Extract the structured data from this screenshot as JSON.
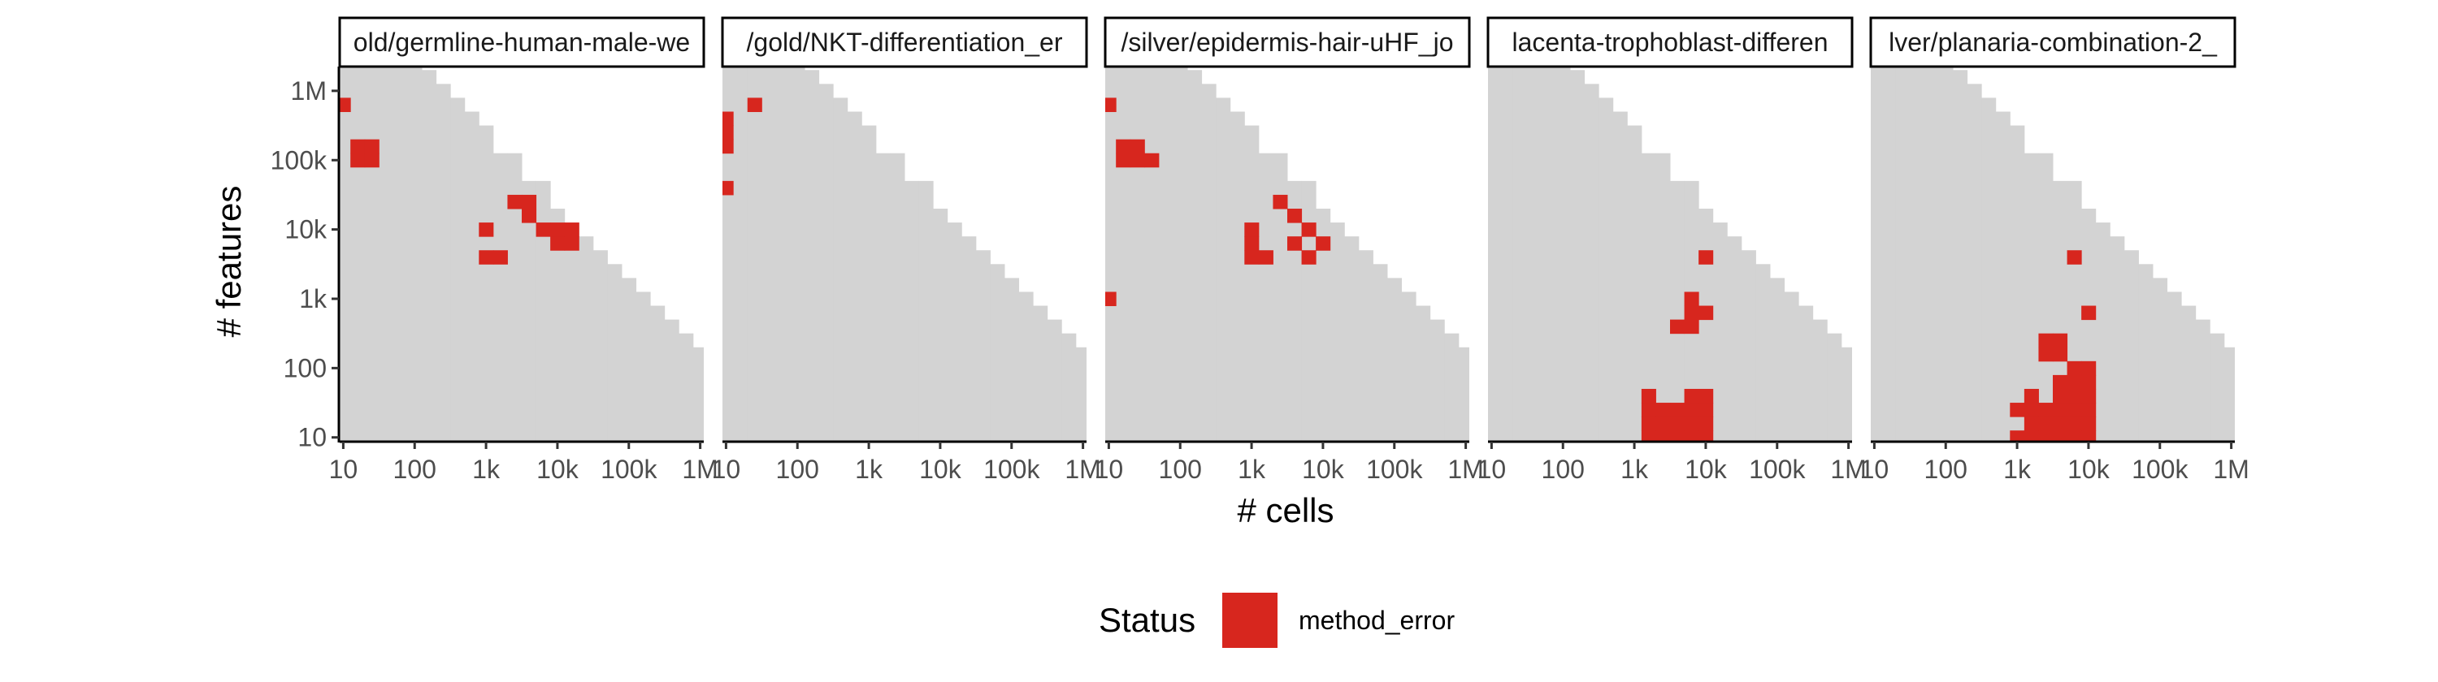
{
  "chart_data": {
    "type": "heatmap",
    "xlabel": "# cells",
    "ylabel": "# features",
    "x_scale": "log10",
    "y_scale": "log10",
    "x_ticks": [
      {
        "value": 10,
        "label": "10"
      },
      {
        "value": 100,
        "label": "100"
      },
      {
        "value": 1000,
        "label": "1k"
      },
      {
        "value": 10000,
        "label": "10k"
      },
      {
        "value": 100000,
        "label": "100k"
      },
      {
        "value": 1000000,
        "label": "1M"
      }
    ],
    "y_ticks": [
      {
        "value": 10,
        "label": "10"
      },
      {
        "value": 100,
        "label": "100"
      },
      {
        "value": 1000,
        "label": "1k"
      },
      {
        "value": 10000,
        "label": "10k"
      },
      {
        "value": 100000,
        "label": "100k"
      },
      {
        "value": 1000000,
        "label": "1M"
      }
    ],
    "xlim_log10": [
      0.95,
      6.05
    ],
    "ylim_log10": [
      0.95,
      6.35
    ],
    "cells_per_decade": 5,
    "feasible_region": "n_features * n_cells <= 2e8 (approx.)",
    "background_color": "#d3d3d3",
    "legend": {
      "title": "Status",
      "position": "bottom",
      "entries": [
        {
          "label": "method_error",
          "color": "#d7261e"
        }
      ]
    },
    "panels": [
      {
        "strip_label": "old/germline-human-male-we",
        "method_error_cells_log10": [
          [
            1.0,
            5.8
          ],
          [
            1.2,
            5.0
          ],
          [
            1.2,
            5.2
          ],
          [
            1.4,
            5.0
          ],
          [
            1.4,
            5.2
          ],
          [
            3.0,
            3.6
          ],
          [
            3.0,
            4.0
          ],
          [
            3.2,
            3.6
          ],
          [
            3.4,
            4.4
          ],
          [
            3.6,
            4.2
          ],
          [
            3.6,
            4.4
          ],
          [
            3.8,
            4.0
          ],
          [
            4.0,
            3.8
          ],
          [
            4.0,
            4.0
          ],
          [
            4.2,
            4.0
          ],
          [
            4.2,
            3.8
          ]
        ]
      },
      {
        "strip_label": "/gold/NKT-differentiation_er",
        "method_error_cells_log10": [
          [
            1.0,
            5.2
          ],
          [
            1.0,
            5.4
          ],
          [
            1.0,
            5.6
          ],
          [
            1.0,
            4.6
          ],
          [
            1.4,
            5.8
          ]
        ]
      },
      {
        "strip_label": "/silver/epidermis-hair-uHF_jo",
        "method_error_cells_log10": [
          [
            1.0,
            5.8
          ],
          [
            1.0,
            3.0
          ],
          [
            1.2,
            5.0
          ],
          [
            1.2,
            5.2
          ],
          [
            1.4,
            5.0
          ],
          [
            1.4,
            5.2
          ],
          [
            1.6,
            5.0
          ],
          [
            3.0,
            3.6
          ],
          [
            3.0,
            3.8
          ],
          [
            3.0,
            4.0
          ],
          [
            3.2,
            3.6
          ],
          [
            3.4,
            4.4
          ],
          [
            3.6,
            4.2
          ],
          [
            3.6,
            3.8
          ],
          [
            3.8,
            4.0
          ],
          [
            3.8,
            3.6
          ],
          [
            4.0,
            3.8
          ]
        ]
      },
      {
        "strip_label": "lacenta-trophoblast-differen",
        "method_error_cells_log10": [
          [
            3.2,
            1.0
          ],
          [
            3.2,
            1.2
          ],
          [
            3.2,
            1.4
          ],
          [
            3.2,
            1.6
          ],
          [
            3.4,
            1.0
          ],
          [
            3.4,
            1.2
          ],
          [
            3.4,
            1.4
          ],
          [
            3.6,
            1.0
          ],
          [
            3.6,
            1.2
          ],
          [
            3.6,
            1.4
          ],
          [
            3.8,
            1.0
          ],
          [
            3.8,
            1.2
          ],
          [
            3.8,
            1.4
          ],
          [
            3.8,
            1.6
          ],
          [
            4.0,
            1.0
          ],
          [
            4.0,
            1.2
          ],
          [
            4.0,
            1.4
          ],
          [
            4.0,
            1.6
          ],
          [
            3.6,
            2.6
          ],
          [
            3.8,
            2.6
          ],
          [
            3.8,
            2.8
          ],
          [
            3.8,
            3.0
          ],
          [
            4.0,
            2.8
          ],
          [
            4.0,
            3.6
          ]
        ]
      },
      {
        "strip_label": "lver/planaria-combination-2_",
        "method_error_cells_log10": [
          [
            3.0,
            1.0
          ],
          [
            3.0,
            1.4
          ],
          [
            3.2,
            1.0
          ],
          [
            3.2,
            1.2
          ],
          [
            3.2,
            1.4
          ],
          [
            3.2,
            1.6
          ],
          [
            3.4,
            1.0
          ],
          [
            3.4,
            1.2
          ],
          [
            3.4,
            1.4
          ],
          [
            3.4,
            2.2
          ],
          [
            3.4,
            2.4
          ],
          [
            3.6,
            1.0
          ],
          [
            3.6,
            1.2
          ],
          [
            3.6,
            1.4
          ],
          [
            3.6,
            1.6
          ],
          [
            3.6,
            1.8
          ],
          [
            3.6,
            2.2
          ],
          [
            3.6,
            2.4
          ],
          [
            3.8,
            1.0
          ],
          [
            3.8,
            1.2
          ],
          [
            3.8,
            1.4
          ],
          [
            3.8,
            1.6
          ],
          [
            3.8,
            1.8
          ],
          [
            3.8,
            2.0
          ],
          [
            3.8,
            3.6
          ],
          [
            4.0,
            1.0
          ],
          [
            4.0,
            1.2
          ],
          [
            4.0,
            1.4
          ],
          [
            4.0,
            1.6
          ],
          [
            4.0,
            1.8
          ],
          [
            4.0,
            2.0
          ],
          [
            4.0,
            2.8
          ]
        ]
      }
    ]
  }
}
